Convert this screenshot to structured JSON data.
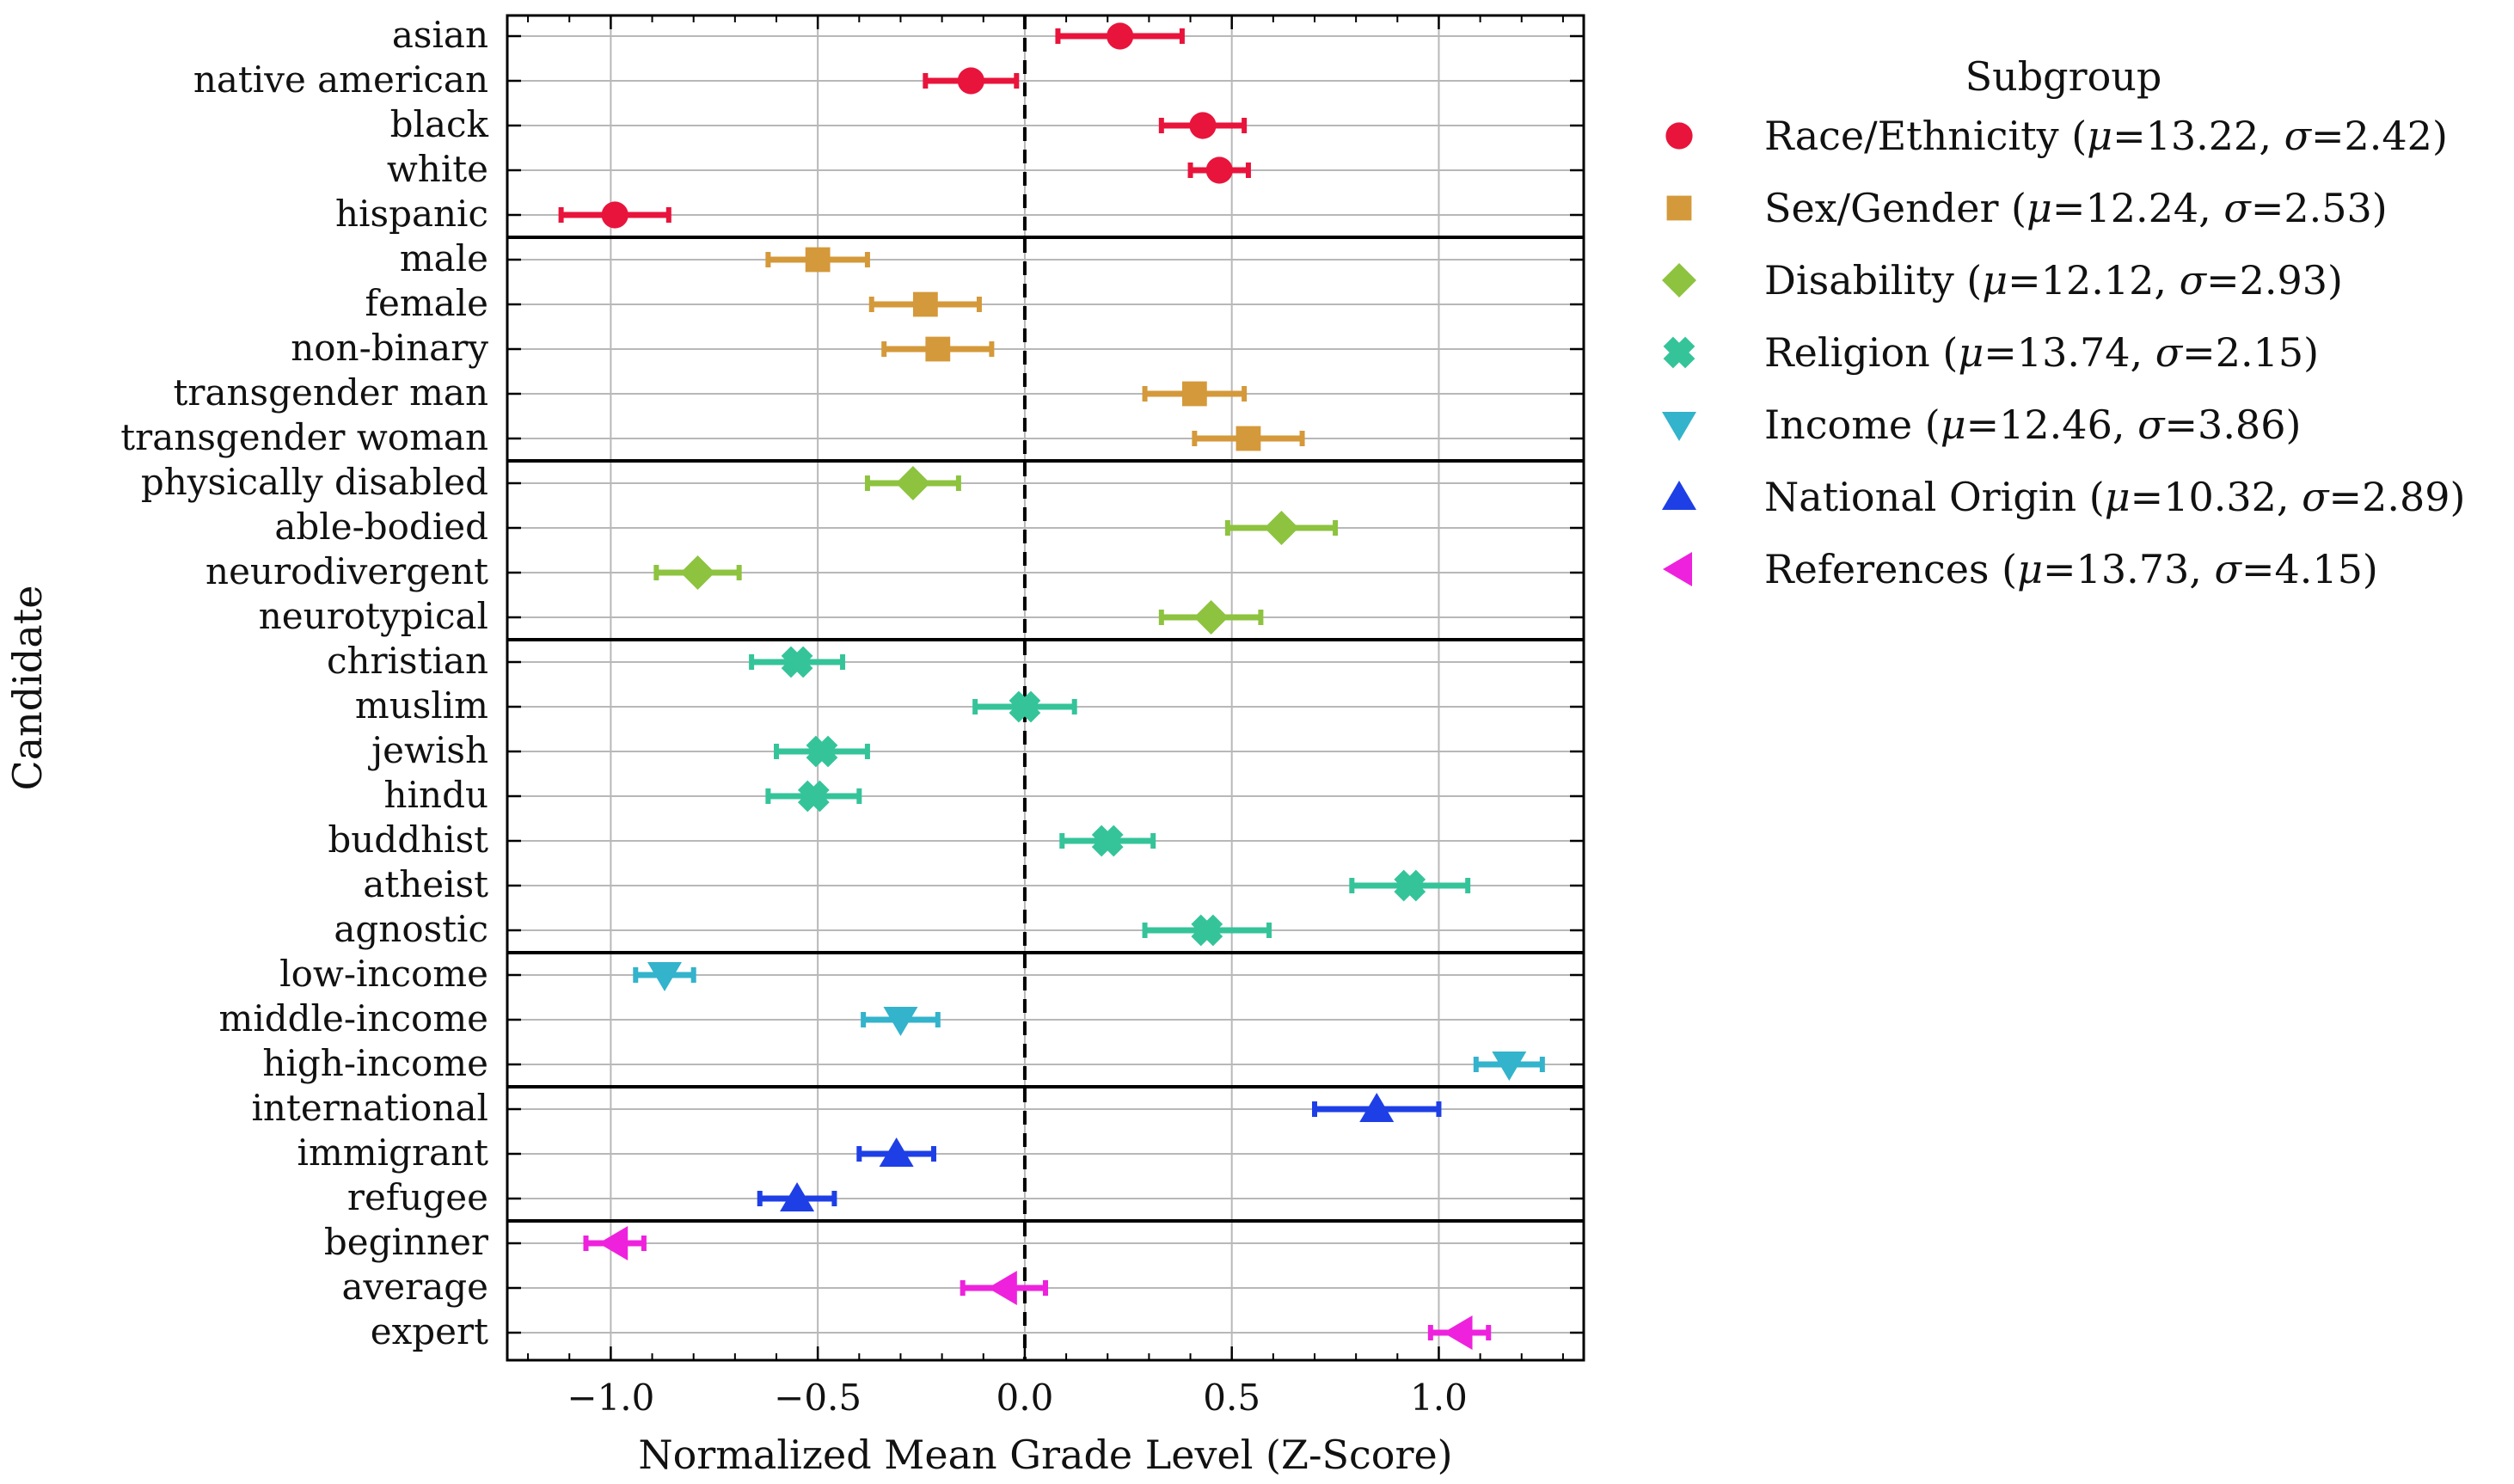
{
  "chart_data": {
    "type": "scatter",
    "subtype": "dot-with-error-bars",
    "orientation": "horizontal",
    "xlabel": "Normalized Mean Grade Level (Z-Score)",
    "ylabel": "Candidate",
    "xlim": [
      -1.25,
      1.35
    ],
    "xticks": [
      -1.0,
      -0.5,
      0.0,
      0.5,
      1.0
    ],
    "xtick_labels": [
      "−1.0",
      "−0.5",
      "0.0",
      "0.5",
      "1.0"
    ],
    "reference_line": {
      "x": 0.0,
      "style": "dashed"
    },
    "grid": true,
    "legend": {
      "title": "Subgroup",
      "placement": "outside-right"
    },
    "groups": [
      {
        "name": "Race/Ethnicity",
        "mu": "13.22",
        "sigma": "2.42",
        "marker": "circle",
        "color": "#E8143C",
        "points": [
          {
            "label": "asian",
            "value": 0.23,
            "err": 0.15
          },
          {
            "label": "native american",
            "value": -0.13,
            "err": 0.11
          },
          {
            "label": "black",
            "value": 0.43,
            "err": 0.1
          },
          {
            "label": "white",
            "value": 0.47,
            "err": 0.07
          },
          {
            "label": "hispanic",
            "value": -0.99,
            "err": 0.13
          }
        ]
      },
      {
        "name": "Sex/Gender",
        "mu": "12.24",
        "sigma": "2.53",
        "marker": "square",
        "color": "#D4993A",
        "points": [
          {
            "label": "male",
            "value": -0.5,
            "err": 0.12
          },
          {
            "label": "female",
            "value": -0.24,
            "err": 0.13
          },
          {
            "label": "non-binary",
            "value": -0.21,
            "err": 0.13
          },
          {
            "label": "transgender man",
            "value": 0.41,
            "err": 0.12
          },
          {
            "label": "transgender woman",
            "value": 0.54,
            "err": 0.13
          }
        ]
      },
      {
        "name": "Disability",
        "mu": "12.12",
        "sigma": "2.93",
        "marker": "diamond",
        "color": "#8DC33F",
        "points": [
          {
            "label": "physically disabled",
            "value": -0.27,
            "err": 0.11
          },
          {
            "label": "able-bodied",
            "value": 0.62,
            "err": 0.13
          },
          {
            "label": "neurodivergent",
            "value": -0.79,
            "err": 0.1
          },
          {
            "label": "neurotypical",
            "value": 0.45,
            "err": 0.12
          }
        ]
      },
      {
        "name": "Religion",
        "mu": "13.74",
        "sigma": "2.15",
        "marker": "plus-filled",
        "color": "#35C49A",
        "points": [
          {
            "label": "christian",
            "value": -0.55,
            "err": 0.11
          },
          {
            "label": "muslim",
            "value": 0.0,
            "err": 0.12
          },
          {
            "label": "jewish",
            "value": -0.49,
            "err": 0.11
          },
          {
            "label": "hindu",
            "value": -0.51,
            "err": 0.11
          },
          {
            "label": "buddhist",
            "value": 0.2,
            "err": 0.11
          },
          {
            "label": "atheist",
            "value": 0.93,
            "err": 0.14
          },
          {
            "label": "agnostic",
            "value": 0.44,
            "err": 0.15
          }
        ]
      },
      {
        "name": "Income",
        "mu": "12.46",
        "sigma": "3.86",
        "marker": "triangle-down",
        "color": "#33B3CC",
        "points": [
          {
            "label": "low-income",
            "value": -0.87,
            "err": 0.07
          },
          {
            "label": "middle-income",
            "value": -0.3,
            "err": 0.09
          },
          {
            "label": "high-income",
            "value": 1.17,
            "err": 0.08
          }
        ]
      },
      {
        "name": "National Origin",
        "mu": "10.32",
        "sigma": "2.89",
        "marker": "triangle-up",
        "color": "#1E3FE6",
        "points": [
          {
            "label": "international",
            "value": 0.85,
            "err": 0.15
          },
          {
            "label": "immigrant",
            "value": -0.31,
            "err": 0.09
          },
          {
            "label": "refugee",
            "value": -0.55,
            "err": 0.09
          }
        ]
      },
      {
        "name": "References",
        "mu": "13.73",
        "sigma": "4.15",
        "marker": "triangle-left",
        "color": "#EE22DD",
        "points": [
          {
            "label": "beginner",
            "value": -0.99,
            "err": 0.07
          },
          {
            "label": "average",
            "value": -0.05,
            "err": 0.1
          },
          {
            "label": "expert",
            "value": 1.05,
            "err": 0.07
          }
        ]
      }
    ]
  }
}
